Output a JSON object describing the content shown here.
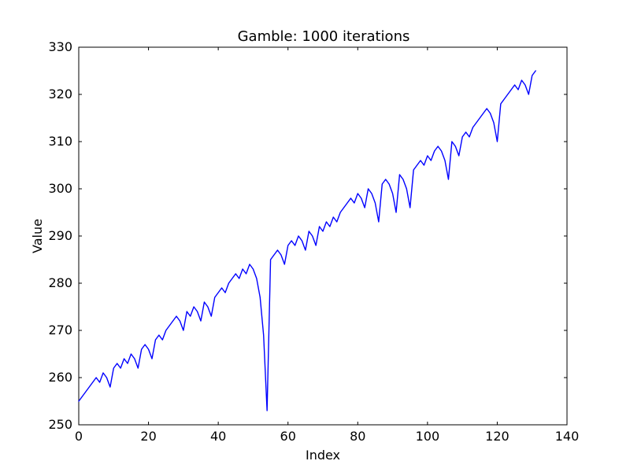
{
  "chart_data": {
    "type": "line",
    "title": "Gamble: 1000 iterations",
    "xlabel": "Index",
    "ylabel": "Value",
    "xlim": [
      0,
      140
    ],
    "ylim": [
      250,
      330
    ],
    "xticks": [
      0,
      20,
      40,
      60,
      80,
      100,
      120,
      140
    ],
    "yticks": [
      250,
      260,
      270,
      280,
      290,
      300,
      310,
      320,
      330
    ],
    "grid": false,
    "line_color": "#0000ff",
    "series": [
      {
        "x": [
          0,
          1,
          2,
          3,
          4,
          5,
          6,
          7,
          8,
          9,
          10,
          11,
          12,
          13,
          14,
          15,
          16,
          17,
          18,
          19,
          20,
          21,
          22,
          23,
          24,
          25,
          26,
          27,
          28,
          29,
          30,
          31,
          32,
          33,
          34,
          35,
          36,
          37,
          38,
          39,
          40,
          41,
          42,
          43,
          44,
          45,
          46,
          47,
          48,
          49,
          50,
          51,
          52,
          53,
          54,
          55,
          56,
          57,
          58,
          59,
          60,
          61,
          62,
          63,
          64,
          65,
          66,
          67,
          68,
          69,
          70,
          71,
          72,
          73,
          74,
          75,
          76,
          77,
          78,
          79,
          80,
          81,
          82,
          83,
          84,
          85,
          86,
          87,
          88,
          89,
          90,
          91,
          92,
          93,
          94,
          95,
          96,
          97,
          98,
          99,
          100,
          101,
          102,
          103,
          104,
          105,
          106,
          107,
          108,
          109,
          110,
          111,
          112,
          113,
          114,
          115,
          116,
          117,
          118,
          119,
          120,
          121,
          122,
          123,
          124,
          125,
          126,
          127,
          128,
          129,
          130,
          131
        ],
        "y": [
          255,
          256,
          257,
          258,
          259,
          260,
          259,
          261,
          260,
          258,
          262,
          263,
          262,
          264,
          263,
          265,
          264,
          262,
          266,
          267,
          266,
          264,
          268,
          269,
          268,
          270,
          271,
          272,
          273,
          272,
          270,
          274,
          273,
          275,
          274,
          272,
          276,
          275,
          273,
          277,
          278,
          279,
          278,
          280,
          281,
          282,
          281,
          283,
          282,
          284,
          283,
          281,
          277,
          269,
          253,
          285,
          286,
          287,
          286,
          284,
          288,
          289,
          288,
          290,
          289,
          287,
          291,
          290,
          288,
          292,
          291,
          293,
          292,
          294,
          293,
          295,
          296,
          297,
          298,
          297,
          299,
          298,
          296,
          300,
          299,
          297,
          293,
          301,
          302,
          301,
          299,
          295,
          303,
          302,
          300,
          296,
          304,
          305,
          306,
          305,
          307,
          306,
          308,
          309,
          308,
          306,
          302,
          310,
          309,
          307,
          311,
          312,
          311,
          313,
          314,
          315,
          316,
          317,
          316,
          314,
          310,
          318,
          319,
          320,
          321,
          322,
          321,
          323,
          322,
          320,
          324,
          325
        ]
      }
    ]
  }
}
